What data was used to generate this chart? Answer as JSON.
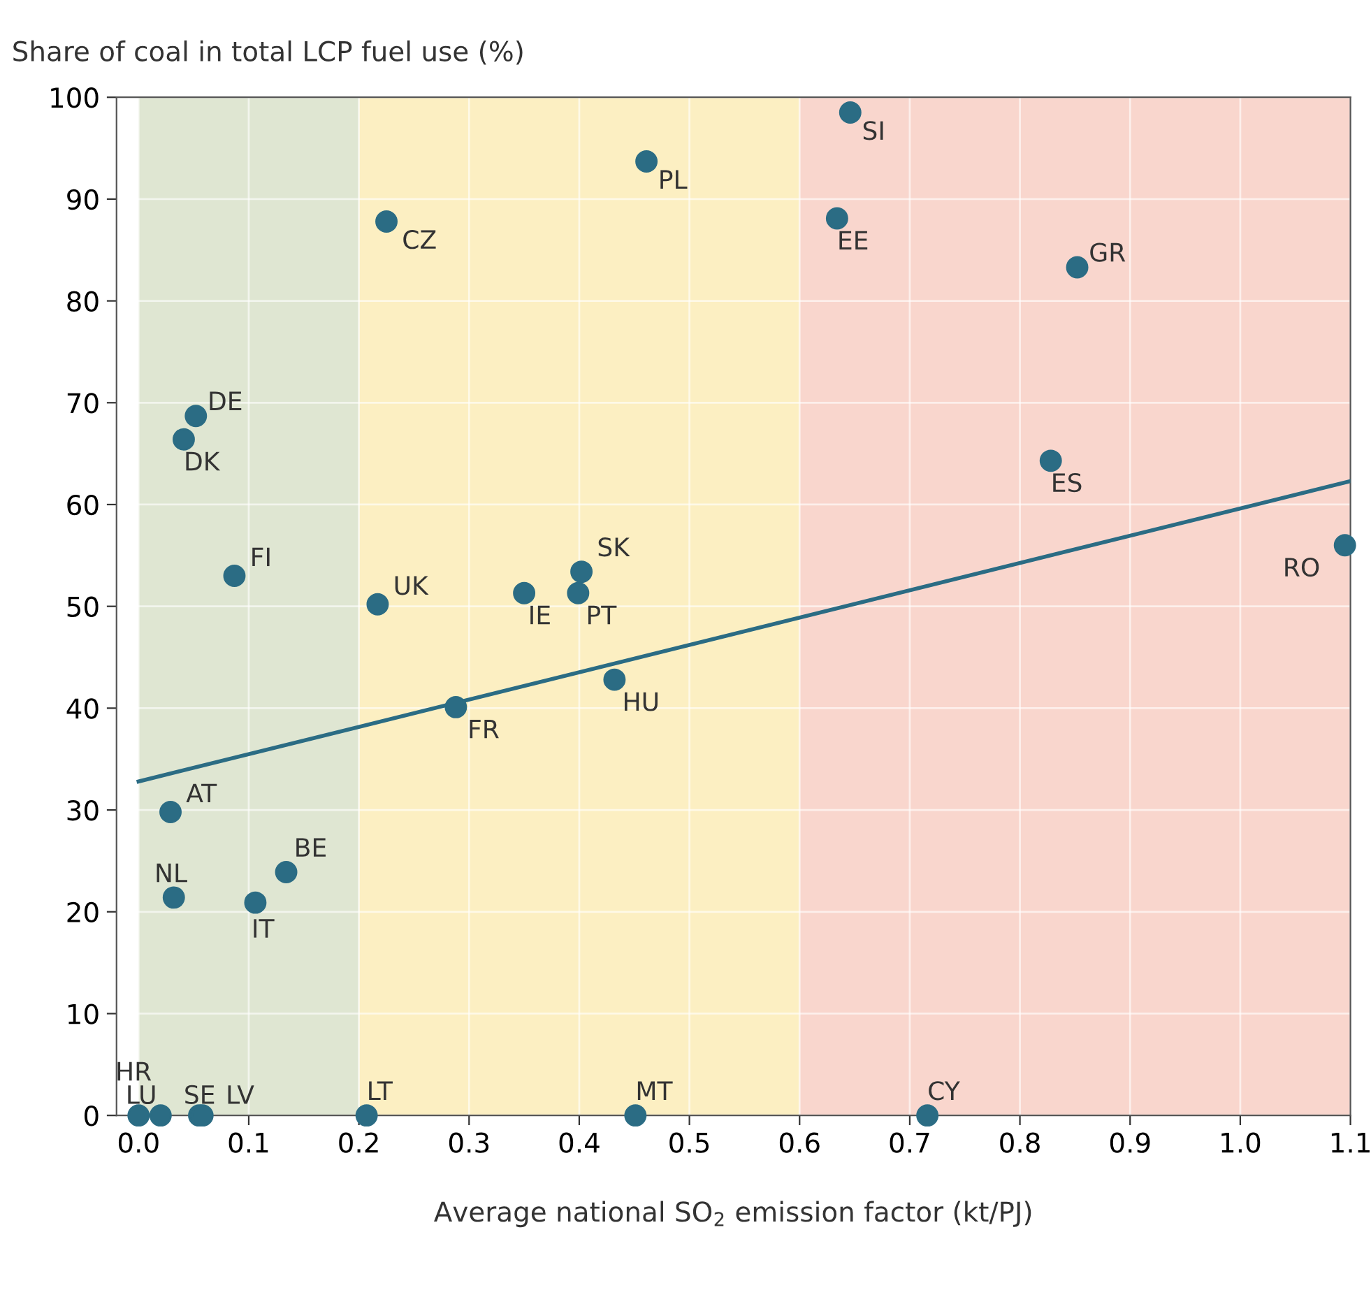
{
  "chart_data": {
    "type": "scatter",
    "ylabel": "Share of coal in total LCP fuel use (%)",
    "xlabel": "Average national SO$_{2}$ emission factor (kt/PJ)",
    "series": [
      {
        "color": "#2b6c84",
        "marker": "circle",
        "x": [
          0.646,
          0.461,
          0.225,
          0.634,
          0.852,
          0.052,
          0.041,
          0.828,
          1.095,
          0.087,
          0.402,
          0.35,
          0.399,
          0.217,
          0.432,
          0.288,
          0.029,
          0.032,
          0.134,
          0.106,
          0.0,
          0.02,
          0.055,
          0.058,
          0.207,
          0.451,
          0.716
        ],
        "values": [
          98.5,
          93.7,
          87.8,
          88.1,
          83.3,
          68.7,
          66.4,
          64.3,
          56.0,
          53.0,
          53.4,
          51.3,
          51.3,
          50.2,
          42.8,
          40.1,
          29.8,
          21.4,
          23.9,
          20.9,
          0,
          0,
          0,
          0,
          0,
          0,
          0
        ]
      },
      {
        "type": "line",
        "color": "#2b6c84",
        "x": [
          0,
          1.1
        ],
        "values": [
          32.8,
          62.3
        ]
      }
    ],
    "annotations": [
      {
        "text": "SI",
        "x": 0.646,
        "y": 98.5
      },
      {
        "text": "PL",
        "x": 0.461,
        "y": 93.7
      },
      {
        "text": "CZ",
        "x": 0.225,
        "y": 87.8
      },
      {
        "text": "EE",
        "x": 0.634,
        "y": 88.1
      },
      {
        "text": "GR",
        "x": 0.852,
        "y": 83.3
      },
      {
        "text": "DE",
        "x": 0.052,
        "y": 68.7
      },
      {
        "text": "DK",
        "x": 0.041,
        "y": 66.4
      },
      {
        "text": "ES",
        "x": 0.828,
        "y": 64.3
      },
      {
        "text": "RO",
        "x": 1.095,
        "y": 56.0
      },
      {
        "text": "FI",
        "x": 0.087,
        "y": 53.0
      },
      {
        "text": "SK",
        "x": 0.402,
        "y": 53.4
      },
      {
        "text": "IE",
        "x": 0.35,
        "y": 51.3
      },
      {
        "text": "PT",
        "x": 0.399,
        "y": 51.3
      },
      {
        "text": "UK",
        "x": 0.217,
        "y": 50.2
      },
      {
        "text": "HU",
        "x": 0.432,
        "y": 42.8
      },
      {
        "text": "FR",
        "x": 0.288,
        "y": 40.1
      },
      {
        "text": "AT",
        "x": 0.029,
        "y": 29.8
      },
      {
        "text": "NL",
        "x": 0.032,
        "y": 21.4
      },
      {
        "text": "BE",
        "x": 0.134,
        "y": 23.9
      },
      {
        "text": "IT",
        "x": 0.106,
        "y": 20.9
      },
      {
        "text": "HR",
        "x": 0.0,
        "y": 0
      },
      {
        "text": "LU",
        "x": 0.02,
        "y": 0
      },
      {
        "text": "SE",
        "x": 0.055,
        "y": 0
      },
      {
        "text": "LV",
        "x": 0.058,
        "y": 0
      },
      {
        "text": "LT",
        "x": 0.207,
        "y": 0
      },
      {
        "text": "MT",
        "x": 0.451,
        "y": 0
      },
      {
        "text": "CY",
        "x": 0.716,
        "y": 0
      }
    ],
    "bands": [
      {
        "axis": "x",
        "from": 0,
        "to": 0.2,
        "color": "#dfe6d2"
      },
      {
        "axis": "x",
        "from": 0.2,
        "to": 0.6,
        "color": "#fcefc2"
      },
      {
        "axis": "x",
        "from": 0.6,
        "to": 1.1,
        "color": "#f9d6cd"
      }
    ],
    "xlim": [
      -0.02,
      1.1
    ],
    "ylim": [
      0,
      100
    ],
    "xticks": [
      {
        "value": 0,
        "label": "0.0"
      },
      0.1,
      0.2,
      0.3,
      0.4,
      0.5,
      0.6,
      0.7,
      0.8,
      0.9,
      {
        "value": 1,
        "label": "1.0"
      },
      1.1
    ],
    "yticks": [
      0,
      10,
      20,
      30,
      40,
      50,
      60,
      70,
      80,
      90,
      100
    ],
    "grid": true
  }
}
